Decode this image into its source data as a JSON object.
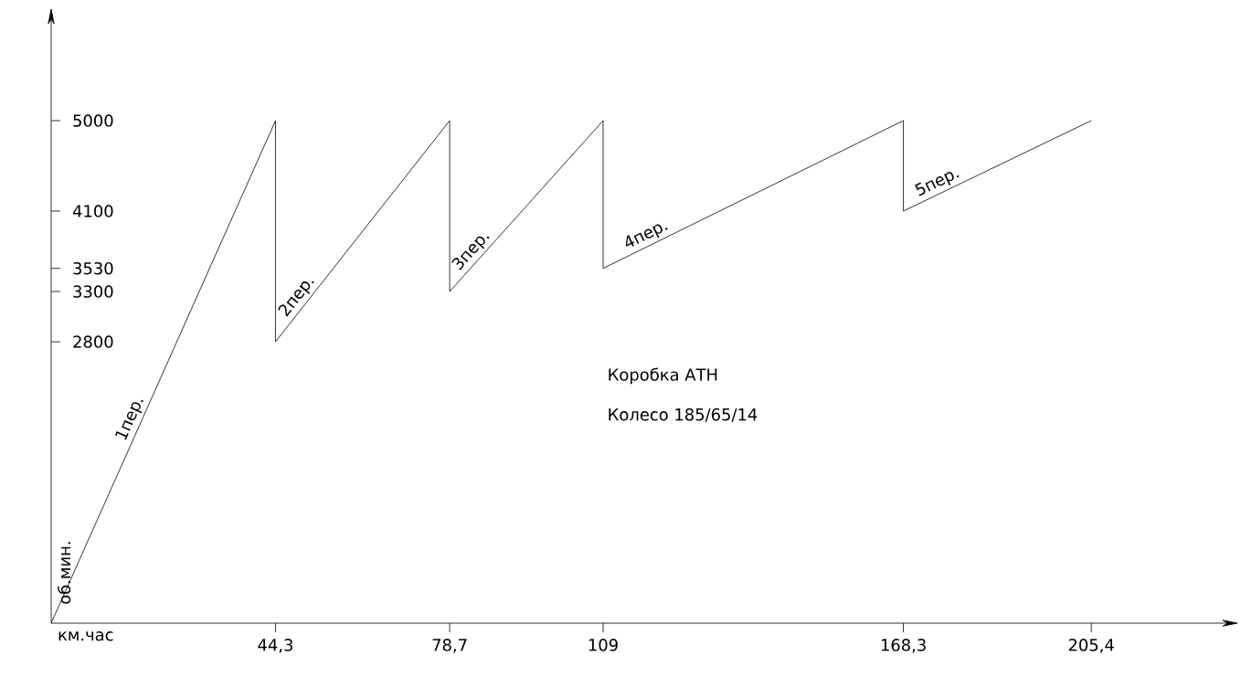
{
  "chart_data": {
    "type": "line",
    "xlabel": "км.час",
    "ylabel": "об.мин.",
    "annotations": [
      "Коробка АТН",
      "Колесо 185/65/14"
    ],
    "xlim": [
      0,
      231
    ],
    "ylim": [
      0,
      6000
    ],
    "xticks": [
      {
        "value": 44.3,
        "label": "44,3"
      },
      {
        "value": 78.7,
        "label": "78,7"
      },
      109,
      {
        "value": 168.3,
        "label": "168,3"
      },
      {
        "value": 205.4,
        "label": "205,4"
      }
    ],
    "yticks": [
      2800,
      3300,
      3530,
      4100,
      5000
    ],
    "series": [
      {
        "name": "1пер.",
        "color": "#000000",
        "x": [
          0,
          44.3
        ],
        "values": [
          0,
          5000
        ]
      },
      {
        "name": "2пер.",
        "color": "#000000",
        "x": [
          44.3,
          44.3,
          78.7
        ],
        "values": [
          5000,
          2800,
          5000
        ]
      },
      {
        "name": "3пер.",
        "color": "#000000",
        "x": [
          78.7,
          78.7,
          109
        ],
        "values": [
          5000,
          3300,
          5000
        ]
      },
      {
        "name": "4пер.",
        "color": "#000000",
        "x": [
          109,
          109,
          168.3
        ],
        "values": [
          5000,
          3530,
          5000
        ]
      },
      {
        "name": "5пер.",
        "color": "#000000",
        "x": [
          168.3,
          168.3,
          205.4
        ],
        "values": [
          5000,
          4100,
          5000
        ]
      }
    ]
  }
}
